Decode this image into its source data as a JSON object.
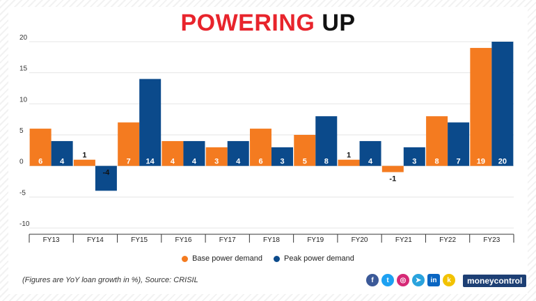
{
  "title_part1": "POWERING",
  "title_part2": "UP",
  "source": "(Figures are YoY loan growth in %), Source: CRISIL",
  "brand": "moneycontrol",
  "social_icons": [
    "facebook-icon",
    "twitter-icon",
    "instagram-icon",
    "telegram-icon",
    "linkedin-icon",
    "koo-icon"
  ],
  "colors": {
    "base": "#f47b20",
    "peak": "#0b4a8b",
    "title_red": "#e8242c"
  },
  "chart_data": {
    "type": "bar",
    "categories": [
      "FY13",
      "FY14",
      "FY15",
      "FY16",
      "FY17",
      "FY18",
      "FY19",
      "FY20",
      "FY21",
      "FY22",
      "FY23"
    ],
    "series": [
      {
        "name": "Base power demand",
        "values": [
          6,
          1,
          7,
          4,
          3,
          6,
          5,
          1,
          -1,
          8,
          19
        ]
      },
      {
        "name": "Peak power demand",
        "values": [
          4,
          -4,
          14,
          4,
          4,
          3,
          8,
          4,
          3,
          7,
          20
        ]
      }
    ],
    "ylim": [
      -10,
      20
    ],
    "yticks": [
      20,
      15,
      10,
      5,
      0,
      -5,
      -10
    ],
    "grid": true,
    "legend_position": "bottom"
  }
}
